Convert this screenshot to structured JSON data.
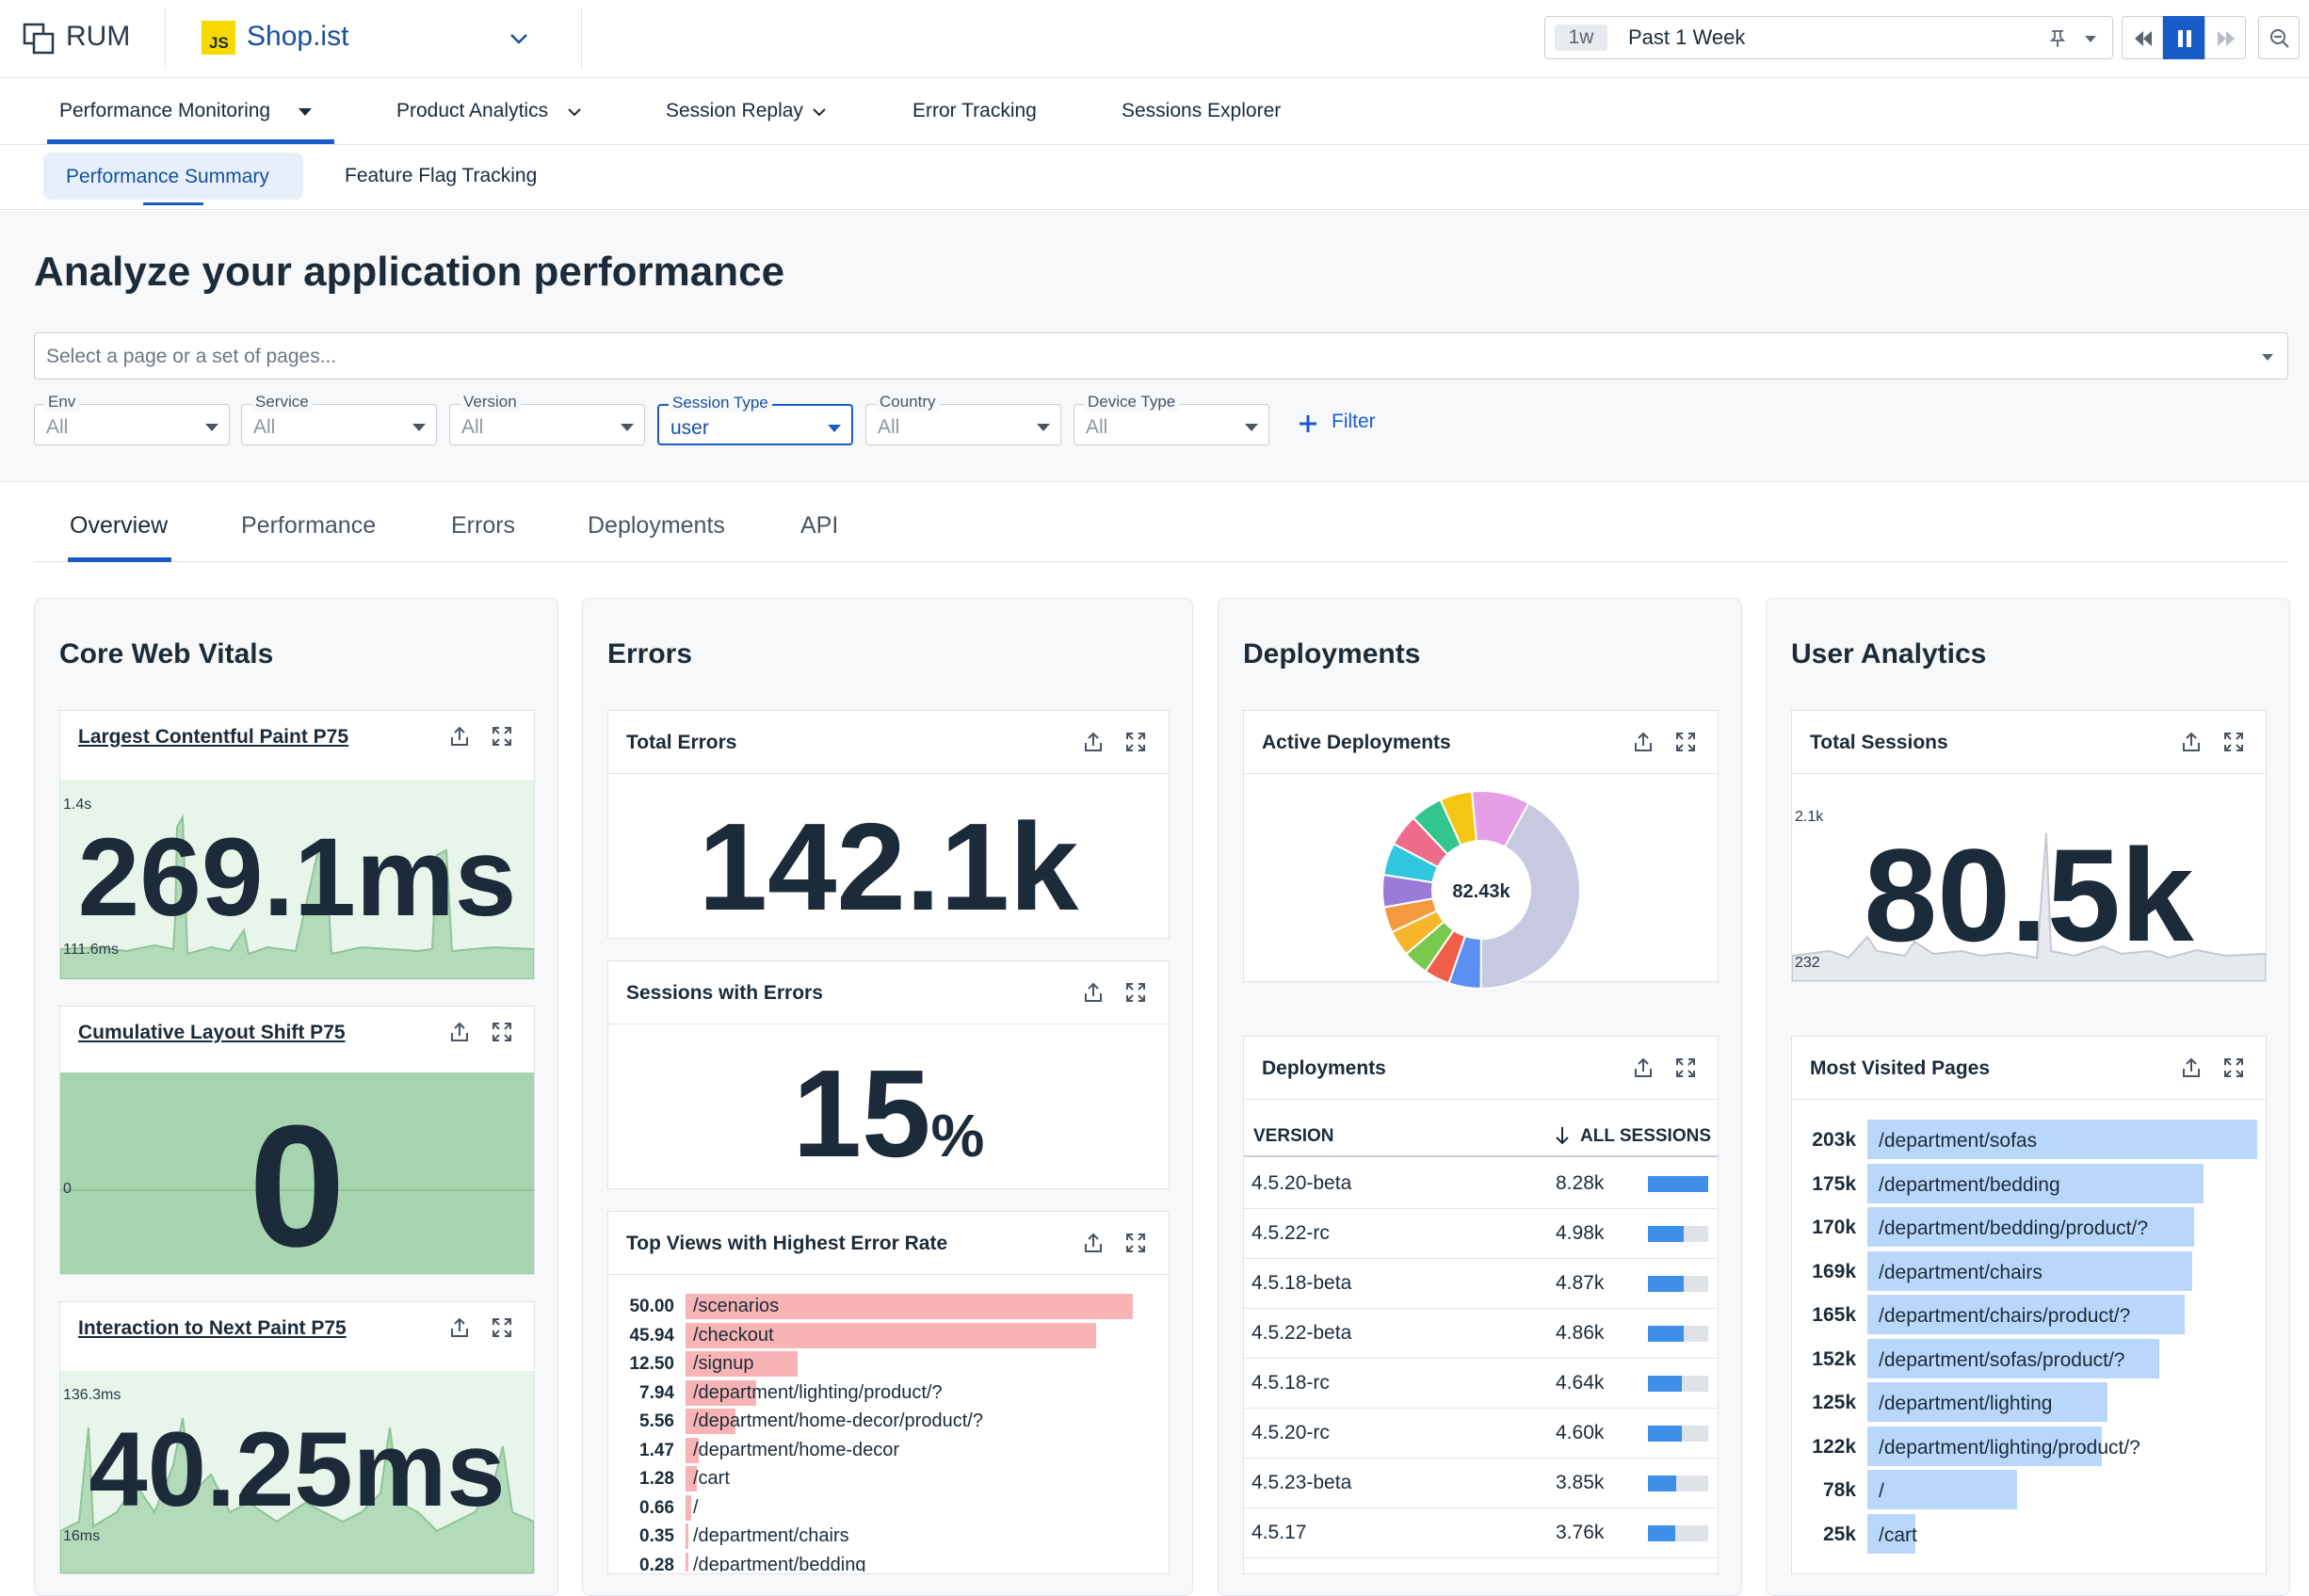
{
  "app": {
    "name": "RUM",
    "project": "Shop.ist",
    "project_badge": "JS"
  },
  "timerange": {
    "chip": "1w",
    "label": "Past 1 Week"
  },
  "nav": {
    "primary": [
      "Performance Monitoring",
      "Product Analytics",
      "Session Replay",
      "Error Tracking",
      "Sessions Explorer"
    ],
    "secondary": [
      "Performance Summary",
      "Feature Flag Tracking"
    ]
  },
  "page": {
    "title": "Analyze your application performance",
    "select_placeholder": "Select a page or a set of pages..."
  },
  "filters": [
    {
      "label": "Env",
      "value": "All"
    },
    {
      "label": "Service",
      "value": "All"
    },
    {
      "label": "Version",
      "value": "All"
    },
    {
      "label": "Session Type",
      "value": "user"
    },
    {
      "label": "Country",
      "value": "All"
    },
    {
      "label": "Device Type",
      "value": "All"
    }
  ],
  "filter_button": "Filter",
  "tabs": [
    "Overview",
    "Performance",
    "Errors",
    "Deployments",
    "API"
  ],
  "sections": {
    "vitals": {
      "title": "Core Web Vitals",
      "lcp": {
        "title": "Largest Contentful Paint P75",
        "value": "269.1ms",
        "ymax": "1.4s",
        "ymin": "111.6ms"
      },
      "cls": {
        "title": "Cumulative Layout Shift P75",
        "value": "0",
        "ymin": "0"
      },
      "inp": {
        "title": "Interaction to Next Paint P75",
        "value": "40.25ms",
        "ymax": "136.3ms",
        "ymin": "16ms"
      }
    },
    "errors": {
      "title": "Errors",
      "total": {
        "title": "Total Errors",
        "value": "142.1k"
      },
      "sessions": {
        "title": "Sessions with Errors",
        "value": "15",
        "unit": "%"
      },
      "top_views": {
        "title": "Top Views with Highest Error Rate",
        "rows": [
          {
            "value": "50.00",
            "label": "/scenarios",
            "frac": 1.0
          },
          {
            "value": "45.94",
            "label": "/checkout",
            "frac": 0.9188
          },
          {
            "value": "12.50",
            "label": "/signup",
            "frac": 0.25
          },
          {
            "value": "7.94",
            "label": "/department/lighting/product/?",
            "frac": 0.1588
          },
          {
            "value": "5.56",
            "label": "/department/home-decor/product/?",
            "frac": 0.1112
          },
          {
            "value": "1.47",
            "label": "/department/home-decor",
            "frac": 0.0294
          },
          {
            "value": "1.28",
            "label": "/cart",
            "frac": 0.0256
          },
          {
            "value": "0.66",
            "label": "/",
            "frac": 0.0132
          },
          {
            "value": "0.35",
            "label": "/department/chairs",
            "frac": 0.007
          },
          {
            "value": "0.28",
            "label": "/department/bedding",
            "frac": 0.0056
          }
        ]
      }
    },
    "deployments": {
      "title": "Deployments",
      "active": {
        "title": "Active Deployments",
        "center": "82.43k"
      },
      "table": {
        "title": "Deployments",
        "col_version": "VERSION",
        "col_sessions": "ALL SESSIONS",
        "rows": [
          {
            "version": "4.5.20-beta",
            "sessions": "8.28k",
            "frac": 1.0
          },
          {
            "version": "4.5.22-rc",
            "sessions": "4.98k",
            "frac": 0.601
          },
          {
            "version": "4.5.18-beta",
            "sessions": "4.87k",
            "frac": 0.588
          },
          {
            "version": "4.5.22-beta",
            "sessions": "4.86k",
            "frac": 0.587
          },
          {
            "version": "4.5.18-rc",
            "sessions": "4.64k",
            "frac": 0.56
          },
          {
            "version": "4.5.20-rc",
            "sessions": "4.60k",
            "frac": 0.556
          },
          {
            "version": "4.5.23-beta",
            "sessions": "3.85k",
            "frac": 0.465
          },
          {
            "version": "4.5.17",
            "sessions": "3.76k",
            "frac": 0.454
          }
        ]
      }
    },
    "users": {
      "title": "User Analytics",
      "sessions": {
        "title": "Total Sessions",
        "value": "80.5k",
        "ymax": "2.1k",
        "ymin": "232"
      },
      "pages": {
        "title": "Most Visited Pages",
        "rows": [
          {
            "value": "203k",
            "label": "/department/sofas",
            "frac": 1.0
          },
          {
            "value": "175k",
            "label": "/department/bedding",
            "frac": 0.862
          },
          {
            "value": "170k",
            "label": "/department/bedding/product/?",
            "frac": 0.837
          },
          {
            "value": "169k",
            "label": "/department/chairs",
            "frac": 0.833
          },
          {
            "value": "165k",
            "label": "/department/chairs/product/?",
            "frac": 0.813
          },
          {
            "value": "152k",
            "label": "/department/sofas/product/?",
            "frac": 0.749
          },
          {
            "value": "125k",
            "label": "/department/lighting",
            "frac": 0.616
          },
          {
            "value": "122k",
            "label": "/department/lighting/product/?",
            "frac": 0.601
          },
          {
            "value": "78k",
            "label": "/",
            "frac": 0.384
          },
          {
            "value": "25k",
            "label": "/cart",
            "frac": 0.123
          }
        ]
      }
    }
  },
  "colors": {
    "accent": "#1a5cc7",
    "error_bar": "#f8b4b4",
    "page_bar": "#b9d7fa",
    "sparkline": "#8fc49a"
  },
  "icons": [
    "rum-icon",
    "chevron-down-icon",
    "pin-icon",
    "rewind-icon",
    "pause-icon",
    "fast-forward-icon",
    "zoom-out-icon",
    "plus-icon",
    "export-icon",
    "expand-icon",
    "arrow-down-icon"
  ]
}
